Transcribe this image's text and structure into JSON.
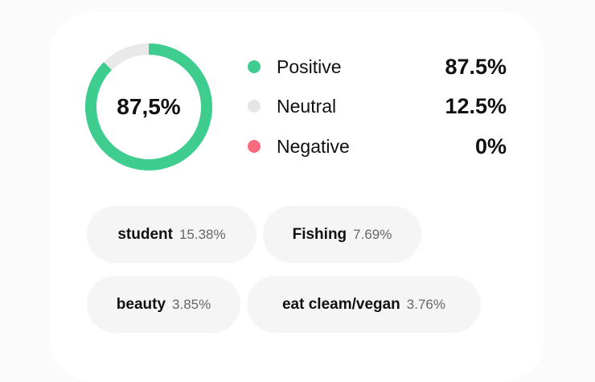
{
  "sentiment": {
    "center_label": "87,5%",
    "items": [
      {
        "label": "Positive",
        "value": "87.5%",
        "percent": 87.5,
        "color": "#3ecc8f"
      },
      {
        "label": "Neutral",
        "value": "12.5%",
        "percent": 12.5,
        "color": "#e9e9e9"
      },
      {
        "label": "Negative",
        "value": "0%",
        "percent": 0,
        "color": "#f76b7d"
      }
    ]
  },
  "tags": [
    {
      "name": "student",
      "value": "15.38%"
    },
    {
      "name": "Fishing",
      "value": "7.69%"
    },
    {
      "name": "beauty",
      "value": "3.85%"
    },
    {
      "name": "eat cleam/vegan",
      "value": "3.76%"
    }
  ]
}
